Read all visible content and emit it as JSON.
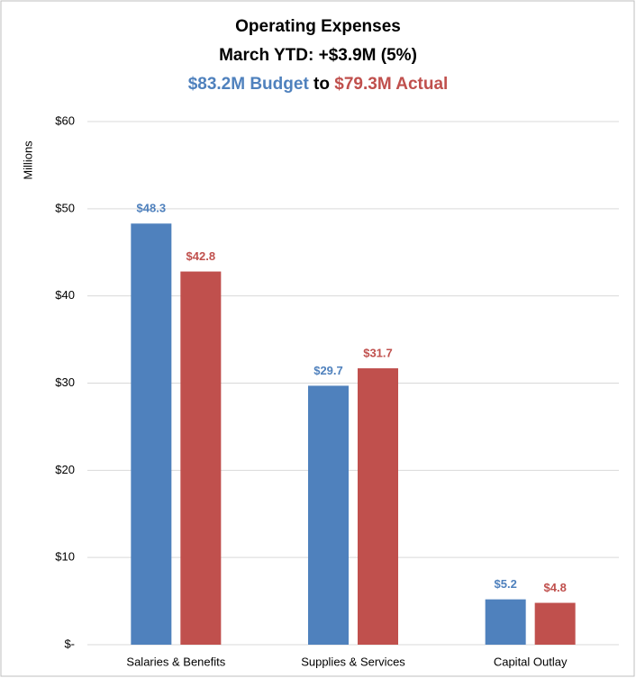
{
  "chart_data": {
    "type": "bar",
    "title": "Operating Expenses",
    "subtitle": "March YTD: +$3.9M (5%)",
    "subtitle_parts": [
      {
        "text": "$83.2M Budget",
        "color": "#4f81bd"
      },
      {
        "text": " to ",
        "color": "#000000"
      },
      {
        "text": "$79.3M Actual",
        "color": "#c0504d"
      }
    ],
    "ylabel": "Millions",
    "categories": [
      "Salaries & Benefits",
      "Supplies & Services",
      "Capital Outlay"
    ],
    "series": [
      {
        "color": "#4f81bd",
        "values": [
          48.3,
          29.7,
          5.2
        ],
        "value_labels": [
          "$48.3",
          "$29.7",
          "$5.2"
        ]
      },
      {
        "color": "#c0504d",
        "values": [
          42.8,
          31.7,
          4.8
        ],
        "value_labels": [
          "$42.8",
          "$31.7",
          "$4.8"
        ]
      }
    ],
    "ylim": [
      0,
      60
    ],
    "yticks": [
      {
        "value": 0,
        "label": "$-"
      },
      {
        "value": 10,
        "label": "$10"
      },
      {
        "value": 20,
        "label": "$20"
      },
      {
        "value": 30,
        "label": "$30"
      },
      {
        "value": 40,
        "label": "$40"
      },
      {
        "value": 50,
        "label": "$50"
      },
      {
        "value": 60,
        "label": "$60"
      }
    ],
    "grid": true
  }
}
